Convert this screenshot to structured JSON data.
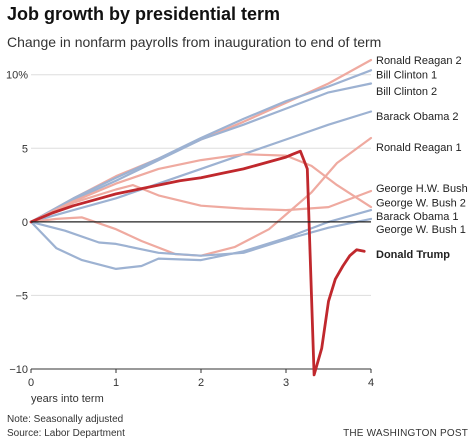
{
  "title": "Job growth by presidential term",
  "subtitle": "Change in nonfarm payrolls from inauguration to end of term",
  "notes": [
    "Note: Seasonally adjusted",
    "Source: Labor Department"
  ],
  "credit": "THE WASHINGTON POST",
  "chart_data": {
    "type": "line",
    "xlabel": "years into term",
    "xlim": [
      0,
      4
    ],
    "ylim": [
      -10,
      11
    ],
    "x_ticks": [
      0,
      1,
      2,
      3,
      4
    ],
    "x_tick_labels": [
      "0",
      "1",
      "2",
      "3",
      "4"
    ],
    "y_ticks": [
      -10,
      -5,
      0,
      5,
      10
    ],
    "y_tick_labels": [
      "−10",
      "−5",
      "0",
      "5",
      "10%"
    ],
    "grid": "horizontal",
    "colors": {
      "red_dark": "#c0282d",
      "red_light": "#efaaa0",
      "blue": "#9db2d2",
      "zero_line": "#222222",
      "grid": "#dddddd"
    },
    "series": [
      {
        "name": "Ronald Reagan 2",
        "color": "red_light",
        "width": 2.2,
        "x": [
          0,
          0.5,
          1,
          1.5,
          2,
          2.5,
          3,
          3.5,
          4
        ],
        "y": [
          0,
          1.6,
          3.1,
          4.3,
          5.6,
          6.8,
          8.1,
          9.4,
          11.0
        ]
      },
      {
        "name": "Bill Clinton 1",
        "color": "blue",
        "width": 2.2,
        "x": [
          0,
          0.5,
          1,
          1.5,
          2,
          2.5,
          3,
          3.5,
          4
        ],
        "y": [
          0,
          1.6,
          3.0,
          4.3,
          5.7,
          7.0,
          8.2,
          9.2,
          10.3
        ]
      },
      {
        "name": "Bill Clinton 2",
        "color": "blue",
        "width": 2.2,
        "x": [
          0,
          0.5,
          1,
          1.5,
          2,
          2.5,
          3,
          3.5,
          4
        ],
        "y": [
          0,
          1.5,
          2.8,
          4.2,
          5.6,
          6.6,
          7.7,
          8.8,
          9.4
        ]
      },
      {
        "name": "Barack Obama 2",
        "color": "blue",
        "width": 2.2,
        "x": [
          0,
          0.5,
          1,
          1.5,
          2,
          2.5,
          3,
          3.5,
          4
        ],
        "y": [
          0,
          0.8,
          1.6,
          2.6,
          3.6,
          4.6,
          5.6,
          6.6,
          7.5
        ]
      },
      {
        "name": "Ronald Reagan 1",
        "color": "red_light",
        "width": 2.2,
        "x": [
          0,
          0.3,
          0.6,
          1.0,
          1.3,
          1.7,
          2.0,
          2.4,
          2.8,
          3.0,
          3.3,
          3.6,
          4.0
        ],
        "y": [
          0,
          0.2,
          0.3,
          -0.5,
          -1.3,
          -2.2,
          -2.3,
          -1.7,
          -0.5,
          0.5,
          2.0,
          4.0,
          5.7
        ]
      },
      {
        "name": "George H.W. Bush",
        "color": "red_light",
        "width": 2.2,
        "x": [
          0,
          0.5,
          1.0,
          1.2,
          1.5,
          2.0,
          2.5,
          3.0,
          3.5,
          4.0
        ],
        "y": [
          0,
          1.3,
          2.2,
          2.5,
          1.8,
          1.1,
          0.9,
          0.8,
          1.0,
          2.1
        ]
      },
      {
        "name": "George W. Bush 2",
        "color": "red_light",
        "width": 2.2,
        "x": [
          0,
          0.5,
          1.0,
          1.5,
          2.0,
          2.5,
          3.0,
          3.3,
          3.6,
          4.0
        ],
        "y": [
          0,
          1.4,
          2.6,
          3.6,
          4.2,
          4.6,
          4.5,
          3.8,
          2.5,
          1.0
        ]
      },
      {
        "name": "Barack Obama 1",
        "color": "blue",
        "width": 2.2,
        "x": [
          0,
          0.3,
          0.6,
          1.0,
          1.3,
          1.5,
          2.0,
          2.5,
          3.0,
          3.5,
          4.0
        ],
        "y": [
          0,
          -1.8,
          -2.6,
          -3.2,
          -3.0,
          -2.5,
          -2.6,
          -2.0,
          -1.1,
          0.0,
          0.8
        ]
      },
      {
        "name": "George W. Bush 1",
        "color": "blue",
        "width": 2.2,
        "x": [
          0,
          0.4,
          0.8,
          1.0,
          1.5,
          2.0,
          2.5,
          3.0,
          3.5,
          4.0
        ],
        "y": [
          0,
          -0.6,
          -1.4,
          -1.5,
          -2.1,
          -2.3,
          -2.1,
          -1.2,
          -0.4,
          0.2
        ]
      },
      {
        "name": "Donald Trump",
        "color": "red_dark",
        "width": 2.8,
        "bold": true,
        "x": [
          0,
          0.25,
          0.5,
          0.75,
          1.0,
          1.25,
          1.5,
          1.75,
          2.0,
          2.25,
          2.5,
          2.75,
          3.0,
          3.08,
          3.17,
          3.25,
          3.33,
          3.42,
          3.5,
          3.58,
          3.67,
          3.75,
          3.83,
          3.92
        ],
        "y": [
          0,
          0.6,
          1.1,
          1.5,
          1.9,
          2.2,
          2.5,
          2.8,
          3.0,
          3.3,
          3.6,
          4.0,
          4.4,
          4.6,
          4.8,
          3.6,
          -10.4,
          -8.6,
          -5.4,
          -3.9,
          -3.0,
          -2.3,
          -1.9,
          -2.0
        ]
      }
    ],
    "legend": [
      {
        "text": "Ronald Reagan 2",
        "y": 11.0,
        "bold": false
      },
      {
        "text": "Bill Clinton 1",
        "y": 10.0,
        "bold": false
      },
      {
        "text": "Bill Clinton 2",
        "y": 8.9,
        "bold": false
      },
      {
        "text": "Barack Obama 2",
        "y": 7.2,
        "bold": false
      },
      {
        "text": "Ronald Reagan 1",
        "y": 5.1,
        "bold": false
      },
      {
        "text": "George H.W. Bush",
        "y": 2.3,
        "bold": false
      },
      {
        "text": "George W. Bush 2",
        "y": 1.3,
        "bold": false
      },
      {
        "text": "Barack Obama 1",
        "y": 0.4,
        "bold": false
      },
      {
        "text": "George W. Bush 1",
        "y": -0.5,
        "bold": false
      },
      {
        "text": "Donald Trump",
        "y": -2.2,
        "bold": true
      }
    ]
  }
}
